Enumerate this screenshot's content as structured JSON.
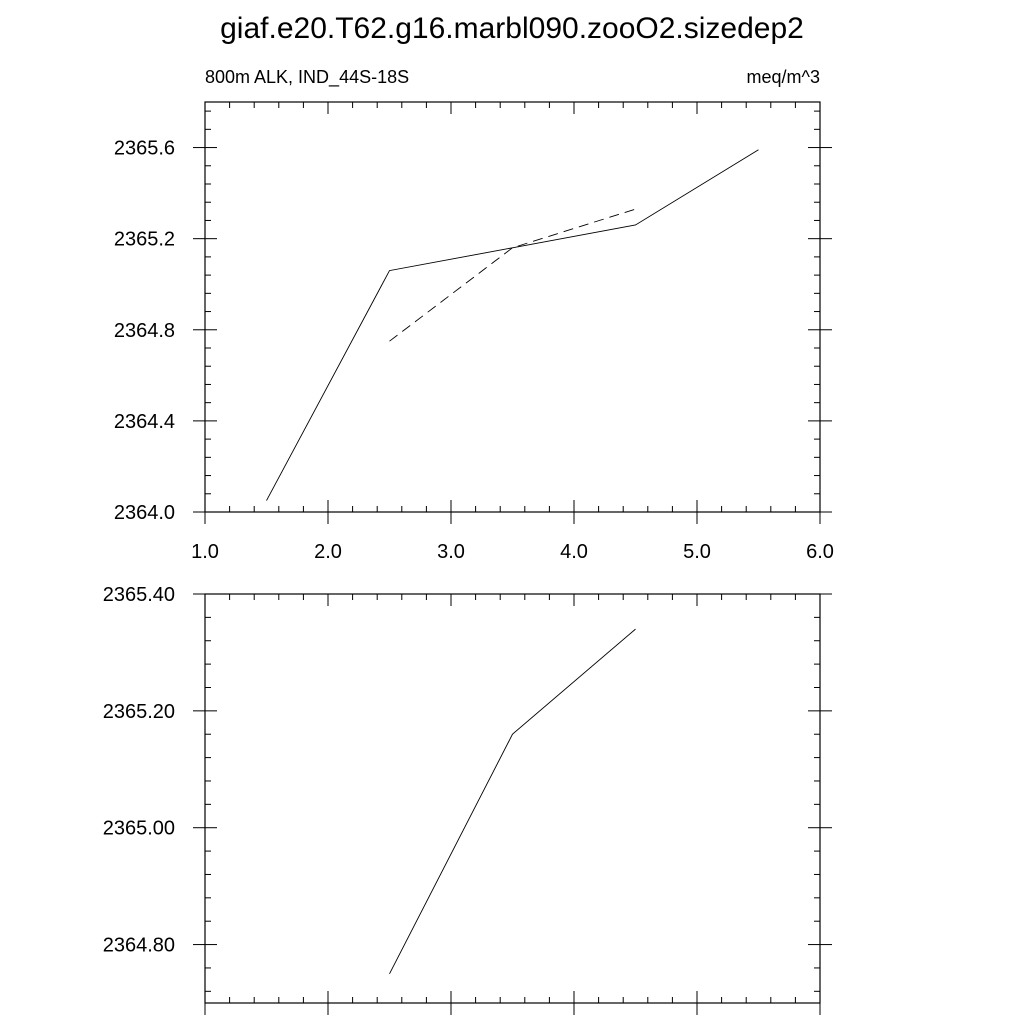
{
  "title": "giaf.e20.T62.g16.marbl090.zooO2.sizedep2",
  "chart_data": [
    {
      "type": "line",
      "left_label": "800m ALK, IND_44S-18S",
      "right_label": "meq/m^3",
      "xlim": [
        1.0,
        6.0
      ],
      "ylim": [
        2364.0,
        2365.8
      ],
      "x_ticks": [
        1.0,
        2.0,
        3.0,
        4.0,
        5.0,
        6.0
      ],
      "x_tick_labels": [
        "1.0",
        "2.0",
        "3.0",
        "4.0",
        "5.0",
        "6.0"
      ],
      "y_ticks": [
        2364.0,
        2364.4,
        2364.8,
        2365.2,
        2365.6
      ],
      "y_tick_labels": [
        "2364.0",
        "2364.4",
        "2364.8",
        "2365.2",
        "2365.6"
      ],
      "grid": false,
      "series": [
        {
          "style": "solid",
          "x": [
            1.5,
            2.5,
            3.5,
            4.5,
            5.5
          ],
          "y": [
            2364.05,
            2365.06,
            2365.16,
            2365.26,
            2365.59
          ]
        },
        {
          "style": "dashed",
          "x": [
            2.5,
            3.5,
            4.5
          ],
          "y": [
            2364.75,
            2365.16,
            2365.33
          ]
        }
      ]
    },
    {
      "type": "line",
      "xlim": [
        1.0,
        6.0
      ],
      "ylim": [
        2364.7,
        2365.4
      ],
      "x_ticks": [
        1.0,
        2.0,
        3.0,
        4.0,
        5.0,
        6.0
      ],
      "y_ticks": [
        2364.8,
        2365.0,
        2365.2,
        2365.4
      ],
      "y_tick_labels": [
        "2364.80",
        "2365.00",
        "2365.20",
        "2365.40"
      ],
      "grid": false,
      "series": [
        {
          "style": "solid",
          "x": [
            2.5,
            3.5,
            4.5
          ],
          "y": [
            2364.75,
            2365.16,
            2365.34
          ]
        }
      ]
    }
  ]
}
